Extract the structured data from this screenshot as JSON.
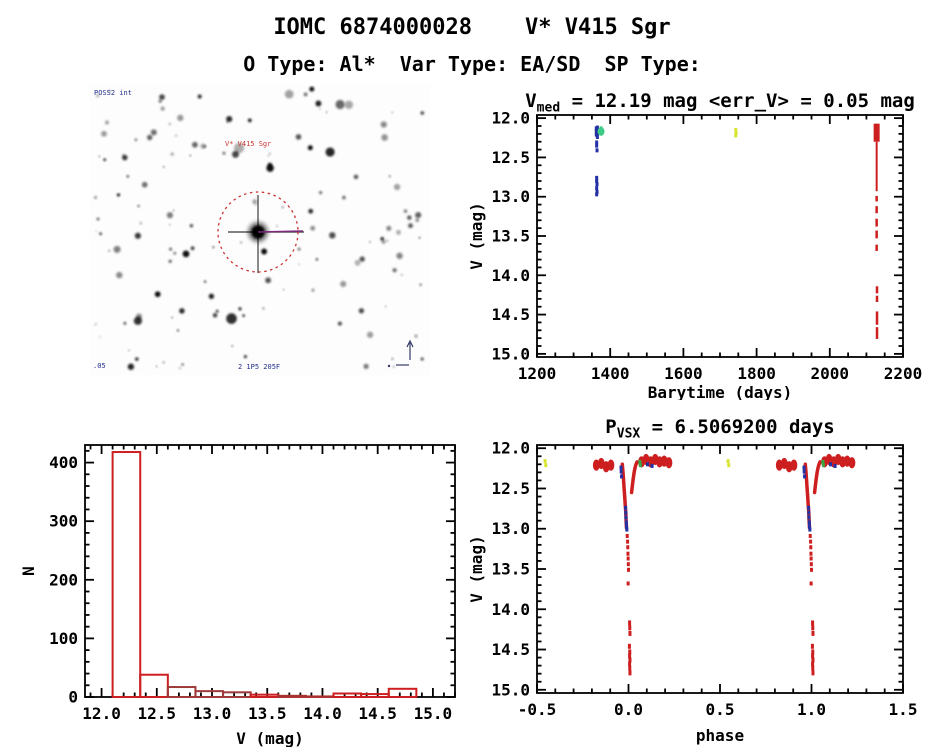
{
  "page": {
    "title": "IOMC 6874000028    V* V415 Sgr",
    "subtitle": "O Type: Al*  Var Type: EA/SD  SP Type:"
  },
  "finding_chart": {
    "survey_label": "POSS2 int",
    "target_label": "V* V415 Sgr",
    "scale_label": ".05",
    "coords_label": "2 1P5 205F",
    "circle_color": "#cc3333",
    "label_color": "#cc3333",
    "annotation_color": "#24308f",
    "seed": 20,
    "star_count": 150
  },
  "chart_data": [
    {
      "type": "scatter",
      "name": "lightcurve",
      "title_parts": {
        "pre": "V",
        "sub": "med",
        "post": " = 12.19 mag <err_V> = 0.05 mag"
      },
      "xlabel": "Barytime (days)",
      "ylabel": "V (mag)",
      "xlim": [
        1200,
        2200
      ],
      "ylim": [
        11.96,
        15.04
      ],
      "y_inverted_mag_axis": true,
      "xticks": [
        1200,
        1400,
        1600,
        1800,
        2000,
        2200
      ],
      "xtick_labels": [
        "1200",
        "1400",
        "1600",
        "1800",
        "2000",
        "2200"
      ],
      "yticks": [
        12.0,
        12.5,
        13.0,
        13.5,
        14.0,
        14.5,
        15.0
      ],
      "ytick_labels": [
        "12.0",
        "12.5",
        "13.0",
        "13.5",
        "14.0",
        "14.5",
        "15.0"
      ],
      "xminor": 50,
      "yminor": 0.1,
      "series": [
        {
          "name": "epoch1-blue",
          "color": "#2431a5",
          "points": [
            [
              1362,
              12.13
            ],
            [
              1365,
              12.12
            ],
            [
              1362,
              12.17
            ],
            [
              1365,
              12.16
            ],
            [
              1362,
              12.21
            ],
            [
              1365,
              12.2
            ],
            [
              1365,
              12.24
            ],
            [
              1363,
              12.31
            ],
            [
              1363,
              12.35
            ],
            [
              1364,
              12.41
            ],
            [
              1363,
              12.76
            ],
            [
              1363,
              12.8
            ],
            [
              1364,
              12.84
            ],
            [
              1363,
              12.89
            ],
            [
              1364,
              12.94
            ],
            [
              1363,
              12.97
            ]
          ]
        },
        {
          "name": "epoch1-green",
          "color": "#3ecb87",
          "blobs": [
            [
              1375,
              12.17
            ]
          ],
          "blob_rx": 3.5,
          "blob_ry_mag": 0.055,
          "points": [
            [
              1375,
              12.13
            ]
          ]
        },
        {
          "name": "epoch2-yellow",
          "color": "#d9e431",
          "points": [
            [
              1743,
              12.15
            ],
            [
              1744,
              12.19
            ],
            [
              1743,
              12.22
            ]
          ]
        },
        {
          "name": "epoch3-red",
          "color": "#cd1f1f",
          "segments": [
            [
              2128,
              12.07,
              12.3,
              6
            ],
            [
              2128,
              12.3,
              12.93,
              2
            ],
            [
              2128,
              12.99,
              13.06,
              2.5
            ],
            [
              2128,
              13.12,
              13.21,
              2.5
            ],
            [
              2128,
              13.28,
              13.38,
              2.5
            ],
            [
              2128,
              13.43,
              13.53,
              2.5
            ],
            [
              2128,
              13.61,
              13.69,
              2.5
            ],
            [
              2129,
              14.14,
              14.23,
              2.5
            ],
            [
              2129,
              14.26,
              14.34,
              2.5
            ],
            [
              2129,
              14.46,
              14.63,
              2.5
            ],
            [
              2129,
              14.66,
              14.81,
              2.5
            ]
          ]
        }
      ]
    },
    {
      "type": "bar",
      "name": "histogram",
      "xlabel": "V (mag)",
      "ylabel": "N",
      "xlim": [
        11.85,
        15.2
      ],
      "ylim": [
        0,
        430
      ],
      "bin_start": 12.1,
      "bin_width": 0.25,
      "values": [
        418,
        38,
        17,
        10,
        8,
        4,
        2,
        1,
        6,
        5,
        14
      ],
      "bar_colors": [
        "#cd1f1f",
        "#cd1f1f",
        "#9e3a3a",
        "#9e3a3a",
        "#9e3a3a",
        "#cd1f1f",
        "#a83333",
        "#a83333",
        "#cd1f1f",
        "#cd1f1f",
        "#cd1f1f"
      ],
      "xticks": [
        12.0,
        12.5,
        13.0,
        13.5,
        14.0,
        14.5,
        15.0
      ],
      "xtick_labels": [
        "12.0",
        "12.5",
        "13.0",
        "13.5",
        "14.0",
        "14.5",
        "15.0"
      ],
      "yticks": [
        0,
        100,
        200,
        300,
        400
      ],
      "ytick_labels": [
        "0",
        "100",
        "200",
        "300",
        "400"
      ],
      "xminor": 0.1,
      "yminor": 20
    },
    {
      "type": "scatter",
      "name": "phase",
      "title_parts": {
        "pre": "P",
        "sub": "VSX",
        "post": " = 6.5069200 days"
      },
      "xlabel": "phase",
      "ylabel": "V (mag)",
      "xlim": [
        -0.5,
        1.5
      ],
      "ylim": [
        11.96,
        15.04
      ],
      "y_inverted_mag_axis": true,
      "repeat_offset": 1.0,
      "xticks": [
        -0.5,
        0.0,
        0.5,
        1.0,
        1.5
      ],
      "xtick_labels": [
        "-0.5",
        "0.0",
        "0.5",
        "1.0",
        "1.5"
      ],
      "yticks": [
        12.0,
        12.5,
        13.0,
        13.5,
        14.0,
        14.5,
        15.0
      ],
      "ytick_labels": [
        "12.0",
        "12.5",
        "13.0",
        "13.5",
        "14.0",
        "14.5",
        "15.0"
      ],
      "xminor": 0.1,
      "yminor": 0.1,
      "series": [
        {
          "name": "yellow",
          "color": "#d9e431",
          "points": [
            [
              -0.456,
              12.16
            ],
            [
              -0.452,
              12.21
            ]
          ]
        },
        {
          "name": "red-oot-blobs",
          "color": "#cd1f1f",
          "blob_rx": 3.4,
          "blob_ry_mag": 0.07,
          "blobs": [
            [
              -0.176,
              12.21
            ],
            [
              -0.149,
              12.19
            ],
            [
              -0.122,
              12.23
            ],
            [
              -0.096,
              12.21
            ],
            [
              0.071,
              12.17
            ],
            [
              0.096,
              12.14
            ],
            [
              0.121,
              12.17
            ],
            [
              0.146,
              12.14
            ],
            [
              0.17,
              12.17
            ],
            [
              0.195,
              12.16
            ],
            [
              0.221,
              12.18
            ]
          ]
        },
        {
          "name": "red-ingress",
          "color": "#cd1f1f",
          "path_width": 3.5,
          "path": [
            [
              -0.034,
              12.2
            ],
            [
              -0.03,
              12.3
            ],
            [
              -0.027,
              12.4
            ],
            [
              -0.024,
              12.5
            ],
            [
              -0.021,
              12.6
            ],
            [
              -0.018,
              12.7
            ],
            [
              -0.015,
              12.8
            ],
            [
              -0.013,
              12.9
            ],
            [
              -0.011,
              12.99
            ]
          ]
        },
        {
          "name": "red-egress",
          "color": "#cd1f1f",
          "path_width": 3.5,
          "path": [
            [
              0.017,
              12.55
            ],
            [
              0.021,
              12.47
            ],
            [
              0.025,
              12.39
            ],
            [
              0.03,
              12.31
            ],
            [
              0.035,
              12.25
            ],
            [
              0.041,
              12.2
            ],
            [
              0.047,
              12.17
            ]
          ]
        },
        {
          "name": "blue-eclipse",
          "color": "#2431a5",
          "points": [
            [
              -0.041,
              12.24
            ],
            [
              -0.04,
              12.29
            ],
            [
              -0.038,
              12.35
            ],
            [
              -0.016,
              12.74
            ],
            [
              -0.015,
              12.8
            ],
            [
              -0.014,
              12.86
            ],
            [
              -0.012,
              12.92
            ],
            [
              -0.011,
              12.97
            ],
            [
              -0.009,
              13.01
            ],
            [
              0.104,
              12.2
            ],
            [
              0.129,
              12.22
            ]
          ]
        },
        {
          "name": "red-faint-bottom",
          "color": "#cd1f1f",
          "points": [
            [
              -0.007,
              13.09
            ],
            [
              -0.005,
              13.16
            ],
            [
              -0.004,
              13.23
            ],
            [
              -0.003,
              13.31
            ],
            [
              -0.002,
              13.37
            ],
            [
              -0.001,
              13.44
            ],
            [
              0.0,
              13.51
            ],
            [
              -0.002,
              13.68
            ]
          ]
        },
        {
          "name": "red-deep",
          "color": "#cd1f1f",
          "point_h": 5,
          "points": [
            [
              0.006,
              14.17
            ],
            [
              0.007,
              14.23
            ],
            [
              0.008,
              14.3
            ],
            [
              0.005,
              14.46
            ],
            [
              0.007,
              14.53
            ],
            [
              0.006,
              14.58
            ],
            [
              0.008,
              14.63
            ],
            [
              0.006,
              14.68
            ],
            [
              0.007,
              14.73
            ],
            [
              0.008,
              14.79
            ]
          ]
        },
        {
          "name": "green",
          "color": "#3aa545",
          "points": [
            [
              0.062,
              12.17
            ],
            [
              0.065,
              12.21
            ]
          ]
        }
      ]
    }
  ]
}
